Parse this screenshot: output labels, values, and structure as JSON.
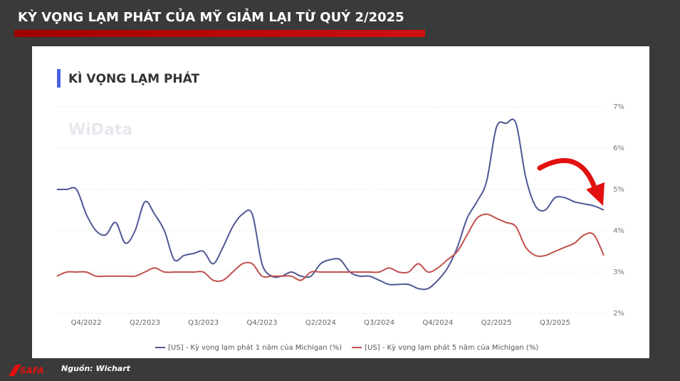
{
  "header": {
    "title": "KỲ VỌNG LẠM PHÁT CỦA MỸ GIẢM LẠI TỪ QUÝ 2/2025"
  },
  "source": "Nguồn: Wichart",
  "logo": "SAFA",
  "chart_data": {
    "type": "line",
    "title": "KÌ VỌNG LẠM PHÁT",
    "watermark": "WiData",
    "categories": [
      null,
      null,
      null,
      "Q4/2022",
      null,
      null,
      null,
      null,
      null,
      "Q2/2023",
      null,
      null,
      null,
      null,
      null,
      "Q3/2023",
      null,
      null,
      null,
      null,
      null,
      "Q4/2023",
      null,
      null,
      null,
      null,
      null,
      "Q2/2024",
      null,
      null,
      null,
      null,
      null,
      "Q3/2024",
      null,
      null,
      null,
      null,
      null,
      "Q4/2024",
      null,
      null,
      null,
      null,
      null,
      "Q2/2025",
      null,
      null,
      null,
      null,
      null,
      "Q3/2025",
      null,
      null,
      null,
      null,
      null
    ],
    "series": [
      {
        "name": "[US] - Kỳ vọng lạm phát 1 năm của Michigan (%)",
        "color": "#4f5794",
        "values": [
          5.0,
          5.0,
          5.0,
          4.4,
          4.0,
          3.9,
          4.2,
          3.7,
          4.0,
          4.7,
          4.4,
          4.0,
          3.3,
          3.4,
          3.45,
          3.5,
          3.2,
          3.6,
          4.1,
          4.4,
          4.4,
          3.2,
          2.9,
          2.9,
          3.0,
          2.9,
          2.9,
          3.2,
          3.3,
          3.3,
          3.0,
          2.9,
          2.9,
          2.8,
          2.7,
          2.7,
          2.7,
          2.6,
          2.6,
          2.8,
          3.1,
          3.6,
          4.3,
          4.7,
          5.2,
          6.5,
          6.6,
          6.6,
          5.3,
          4.6,
          4.5,
          4.8,
          4.8,
          4.7,
          4.65,
          4.6,
          4.5
        ]
      },
      {
        "name": "[US] - Kỳ vọng lạm phát 5 năm của Michigan (%)",
        "color": "#c0504d",
        "values": [
          2.9,
          3.0,
          3.0,
          3.0,
          2.9,
          2.9,
          2.9,
          2.9,
          2.9,
          3.0,
          3.1,
          3.0,
          3.0,
          3.0,
          3.0,
          3.0,
          2.8,
          2.8,
          3.0,
          3.2,
          3.2,
          2.9,
          2.9,
          2.9,
          2.9,
          2.8,
          3.0,
          3.0,
          3.0,
          3.0,
          3.0,
          3.0,
          3.0,
          3.0,
          3.1,
          3.0,
          3.0,
          3.2,
          3.0,
          3.1,
          3.3,
          3.5,
          3.9,
          4.3,
          4.4,
          4.3,
          4.2,
          4.1,
          3.6,
          3.4,
          3.4,
          3.5,
          3.6,
          3.7,
          3.9,
          3.9,
          3.4
        ]
      }
    ],
    "ylim": [
      2,
      7
    ],
    "yticks": [
      {
        "value": 2,
        "label": "2%"
      },
      {
        "value": 3,
        "label": "3%"
      },
      {
        "value": 4,
        "label": "4%"
      },
      {
        "value": 5,
        "label": "5%"
      },
      {
        "value": 6,
        "label": "6%"
      },
      {
        "value": 7,
        "label": "7%"
      }
    ],
    "grid": true,
    "legend": "bottom"
  }
}
